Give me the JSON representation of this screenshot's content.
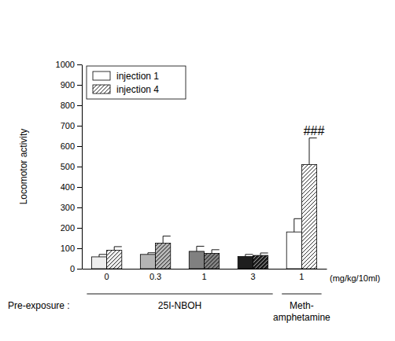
{
  "chart_data": {
    "type": "bar",
    "y_label": "Locomotor activity",
    "x_label": "(mg/kg/10ml)",
    "row_label": "Pre-exposure :",
    "categories": [
      "0",
      "0.3",
      "1",
      "3",
      "1"
    ],
    "groups": [
      {
        "label": [
          "25I-NBOH"
        ],
        "start": 0,
        "end": 3
      },
      {
        "label": [
          "Meth-",
          "amphetamine"
        ],
        "start": 4,
        "end": 4
      }
    ],
    "series": [
      {
        "name": "injection 1",
        "color": "#ffffff",
        "colors": [
          "#eeeeee",
          "#b4b4b4",
          "#808080",
          "#1e1e1e",
          "#ffffff"
        ],
        "values": [
          58,
          70,
          85,
          60,
          180
        ],
        "errors": [
          12,
          8,
          25,
          10,
          65
        ]
      },
      {
        "name": "injection 4",
        "color": "#ffffff",
        "colors": [
          "#eeeeee",
          "#b4b4b4",
          "#808080",
          "#1e1e1e",
          "#ffffff"
        ],
        "values": [
          90,
          125,
          75,
          65,
          510
        ],
        "errors": [
          18,
          35,
          18,
          12,
          130
        ]
      }
    ],
    "ylim": [
      0,
      1000
    ],
    "yticks": [
      0,
      100,
      200,
      300,
      400,
      500,
      600,
      700,
      800,
      900,
      1000
    ],
    "grid": false,
    "legend": "upper left",
    "annotations": [
      {
        "text": "###",
        "series": 1,
        "category": 4
      }
    ]
  }
}
